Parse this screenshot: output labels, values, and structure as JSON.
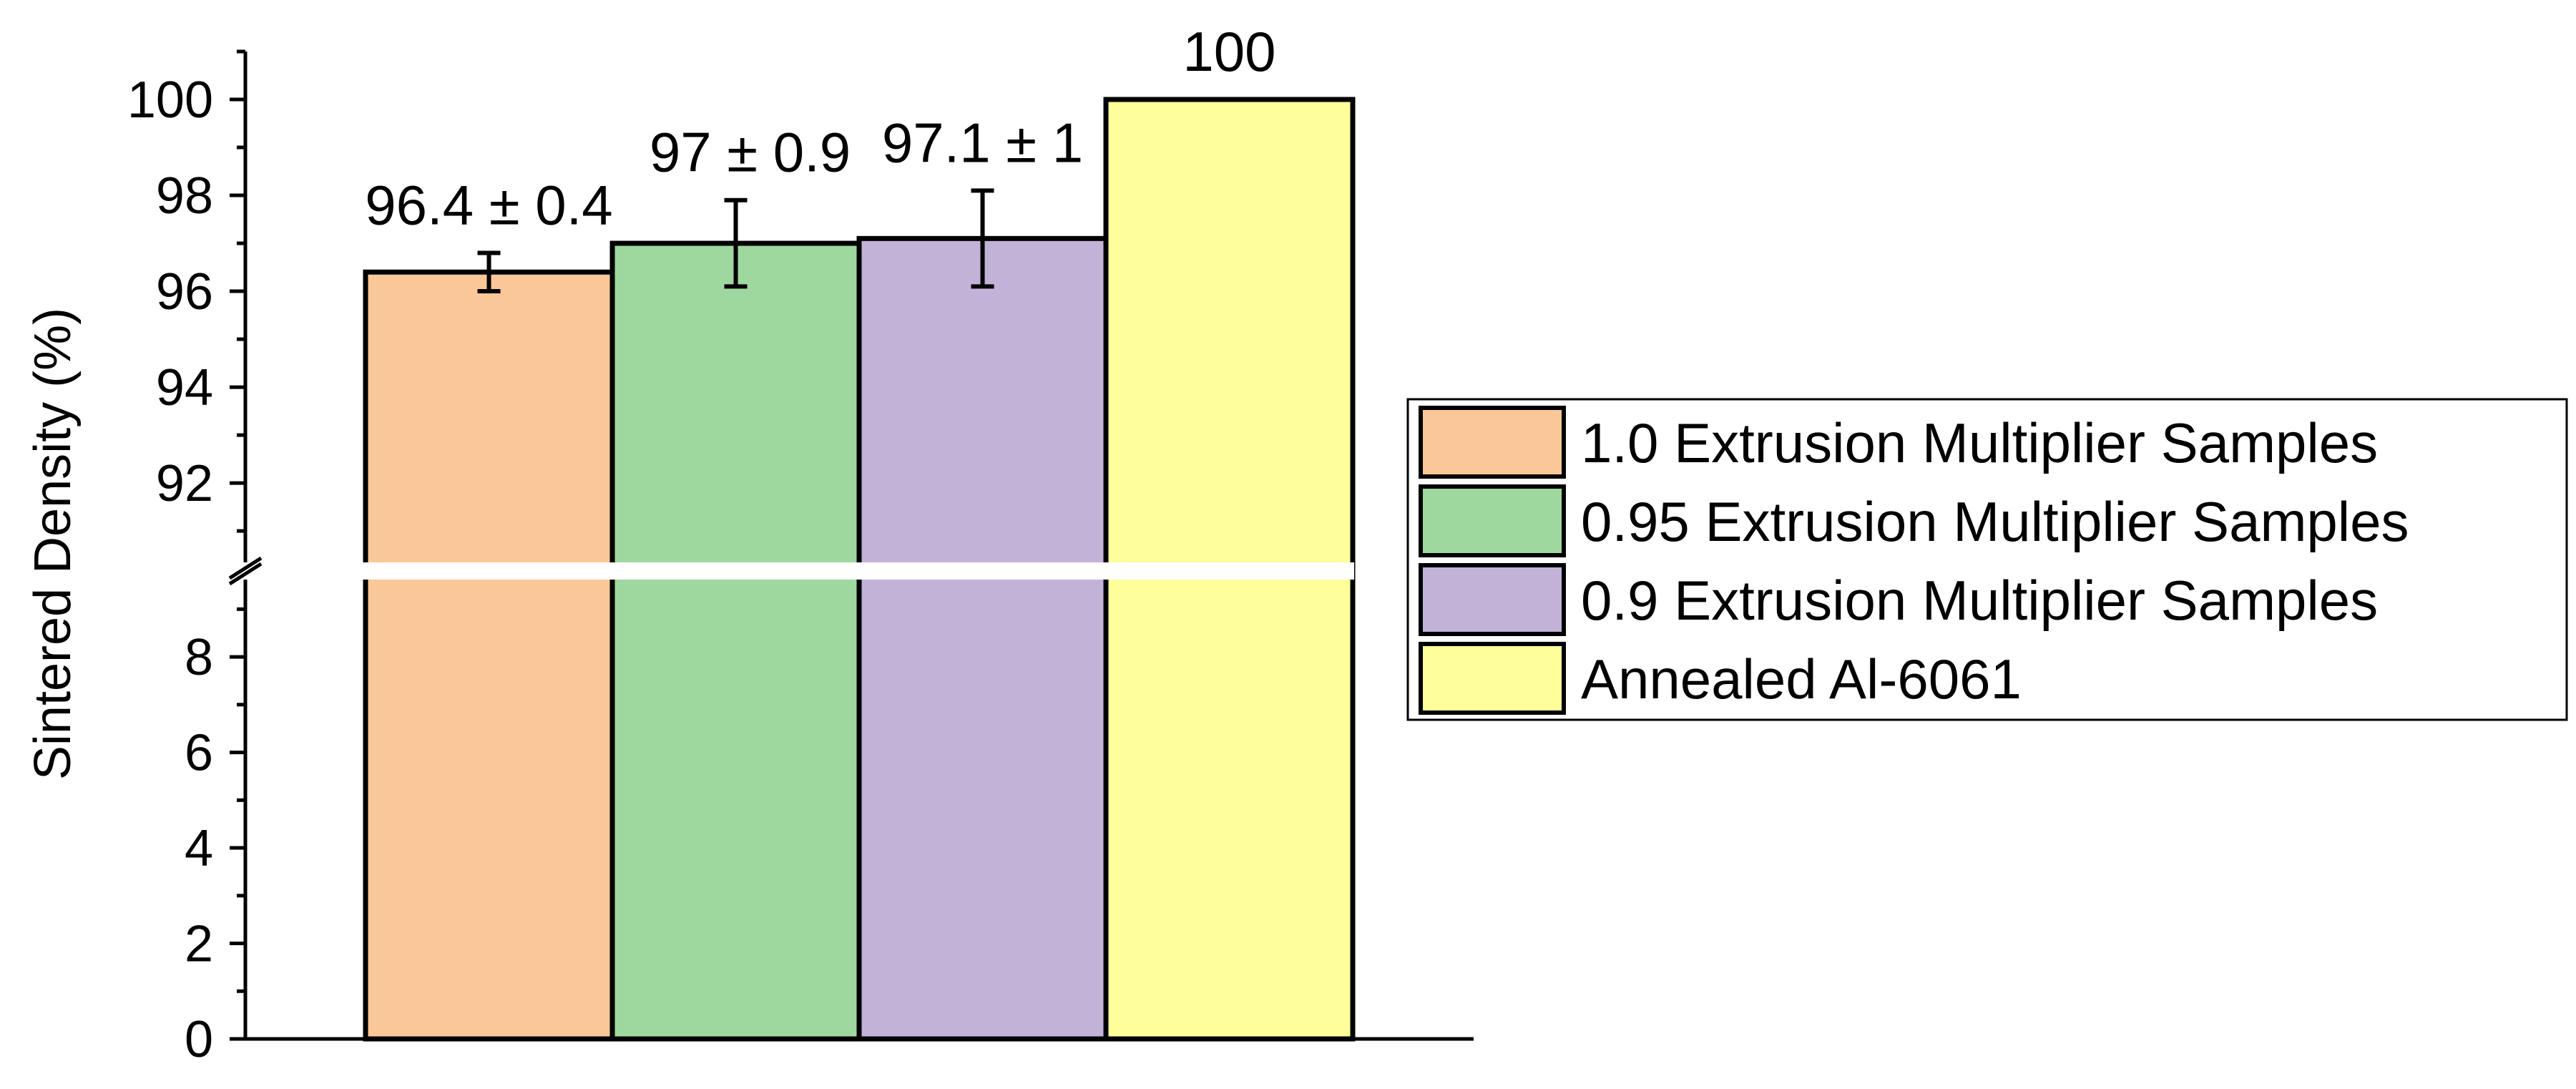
{
  "chart_data": {
    "type": "bar",
    "title": "",
    "ylabel": "Sintered Density (%)",
    "xlabel": "",
    "axis_break": {
      "lower_range": [
        0,
        9.5
      ],
      "upper_range": [
        90.3,
        101
      ]
    },
    "y_ticks_lower": [
      0,
      2,
      4,
      6,
      8
    ],
    "y_ticks_upper": [
      92,
      94,
      96,
      98,
      100
    ],
    "legend_position": "right",
    "series": [
      {
        "name": "1.0 Extrusion Multiplier Samples",
        "value": 96.4,
        "error": 0.4,
        "label": "96.4 ± 0.4",
        "color": "#FAC898"
      },
      {
        "name": "0.95 Extrusion Multiplier Samples",
        "value": 97.0,
        "error": 0.9,
        "label": "97 ± 0.9",
        "color": "#9ED89E"
      },
      {
        "name": "0.9 Extrusion Multiplier Samples",
        "value": 97.1,
        "error": 1.0,
        "label": "97.1 ± 1",
        "color": "#C2B2D8"
      },
      {
        "name": "Annealed Al-6061",
        "value": 100,
        "error": null,
        "label": "100",
        "color": "#FEFE9A"
      }
    ]
  }
}
